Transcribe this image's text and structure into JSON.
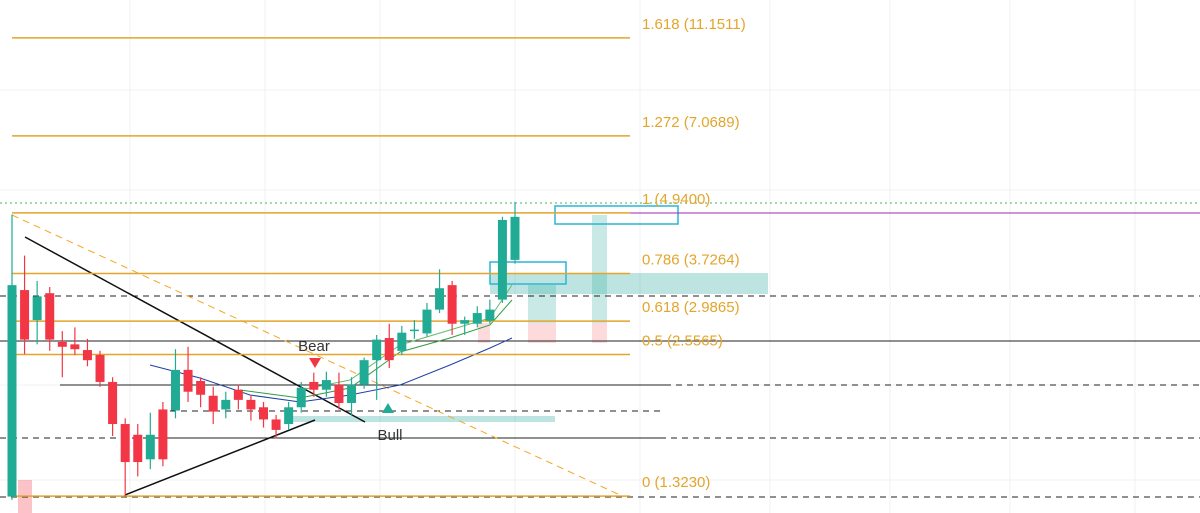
{
  "chart_data": {
    "type": "candlestick",
    "log_scale": true,
    "ylim": [
      1.223,
      13.3
    ],
    "up_color": "#22ab94",
    "down_color": "#f23645",
    "open": [
      1.32,
      3.45,
      3.0,
      3.4,
      2.71,
      2.68,
      2.61,
      2.55,
      2.25,
      1.85,
      1.76,
      1.57,
      1.98,
      1.97,
      2.38,
      2.26,
      2.11,
      1.98,
      2.17,
      2.07,
      2.0,
      1.89,
      1.85,
      2.0,
      2.25,
      2.17,
      2.22,
      2.04,
      2.22,
      2.49,
      2.76,
      2.6,
      2.85,
      2.82,
      3.15,
      3.53,
      2.95,
      2.95,
      2.99,
      3.3,
      3.97
    ],
    "high": [
      4.9,
      4.05,
      3.6,
      3.5,
      2.85,
      2.9,
      2.75,
      2.6,
      2.3,
      1.9,
      1.85,
      1.95,
      2.05,
      2.62,
      2.65,
      2.3,
      2.2,
      2.15,
      2.22,
      2.12,
      2.05,
      1.93,
      2.05,
      2.25,
      2.35,
      2.36,
      2.35,
      2.3,
      2.52,
      2.8,
      2.95,
      2.92,
      3.0,
      3.25,
      3.8,
      3.6,
      3.05,
      3.2,
      3.3,
      4.85,
      5.2
    ],
    "low": [
      1.3,
      2.56,
      2.68,
      2.6,
      2.3,
      2.55,
      2.42,
      2.2,
      1.75,
      1.32,
      1.45,
      1.5,
      1.52,
      1.9,
      2.05,
      2.0,
      1.85,
      1.9,
      1.98,
      1.88,
      1.82,
      1.73,
      1.8,
      1.95,
      2.1,
      2.1,
      1.98,
      1.92,
      2.18,
      2.07,
      2.4,
      2.55,
      2.75,
      2.78,
      3.1,
      2.8,
      2.8,
      2.9,
      2.95,
      3.25,
      3.9
    ],
    "close": [
      3.53,
      2.74,
      3.35,
      2.74,
      2.65,
      2.62,
      2.49,
      2.25,
      1.85,
      1.55,
      1.55,
      1.76,
      1.57,
      2.38,
      2.15,
      2.12,
      1.96,
      2.07,
      2.07,
      1.98,
      1.89,
      1.8,
      2.0,
      2.19,
      2.17,
      2.27,
      2.04,
      2.22,
      2.49,
      2.74,
      2.49,
      2.83,
      2.87,
      3.15,
      3.48,
      2.95,
      3.0,
      3.1,
      3.15,
      4.78,
      4.85
    ],
    "fib_color": "#e3a52b",
    "fib_levels": [
      {
        "value": 11.1511,
        "label": "1.618 (11.1511)"
      },
      {
        "value": 7.0689,
        "label": "1.272 (7.0689)"
      },
      {
        "value": 4.94,
        "label": "1 (4.9400)"
      },
      {
        "value": 3.7264,
        "label": "0.786 (3.7264)"
      },
      {
        "value": 2.9865,
        "label": "0.618 (2.9865)"
      },
      {
        "value": 2.5565,
        "label": "0.5 (2.5565)"
      },
      {
        "value": 1.323,
        "label": "0 (1.3230)"
      }
    ],
    "annotations": [
      "Bear",
      "Bull"
    ]
  }
}
